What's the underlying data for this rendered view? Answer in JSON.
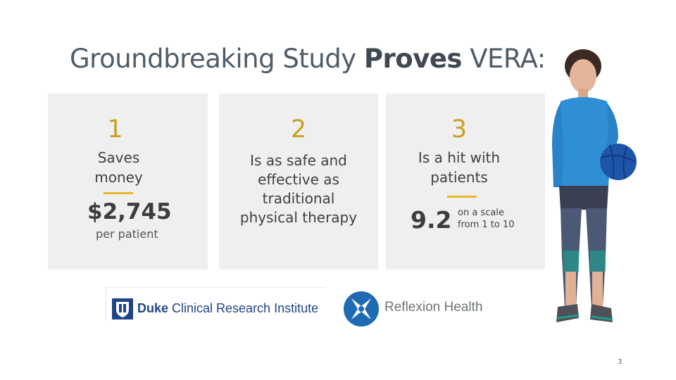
{
  "title": {
    "prefix": "Groundbreaking Study ",
    "bold": "Proves",
    "suffix": " VERA:"
  },
  "cards": [
    {
      "number": "1",
      "line1": "Saves",
      "line2": "money",
      "value": "$2,745",
      "value_note": "per patient"
    },
    {
      "number": "2",
      "line1": "Is as safe and",
      "line2": "effective as",
      "line3": "traditional",
      "line4": "physical therapy"
    },
    {
      "number": "3",
      "line1": "Is a hit with",
      "line2": "patients",
      "value": "9.2",
      "value_note_1": "on a scale",
      "value_note_2": "from 1 to 10"
    }
  ],
  "logos": {
    "duke": {
      "bold": "Duke",
      "rest": " Clinical Research Institute"
    },
    "reflexion": "Reflexion Health"
  },
  "page_number": "3",
  "colors": {
    "accent": "#e8b92a",
    "number": "#c8a01f",
    "card_bg": "#efefef",
    "duke_blue": "#1e4588",
    "avatar_jacket": "#2f8fd6"
  }
}
